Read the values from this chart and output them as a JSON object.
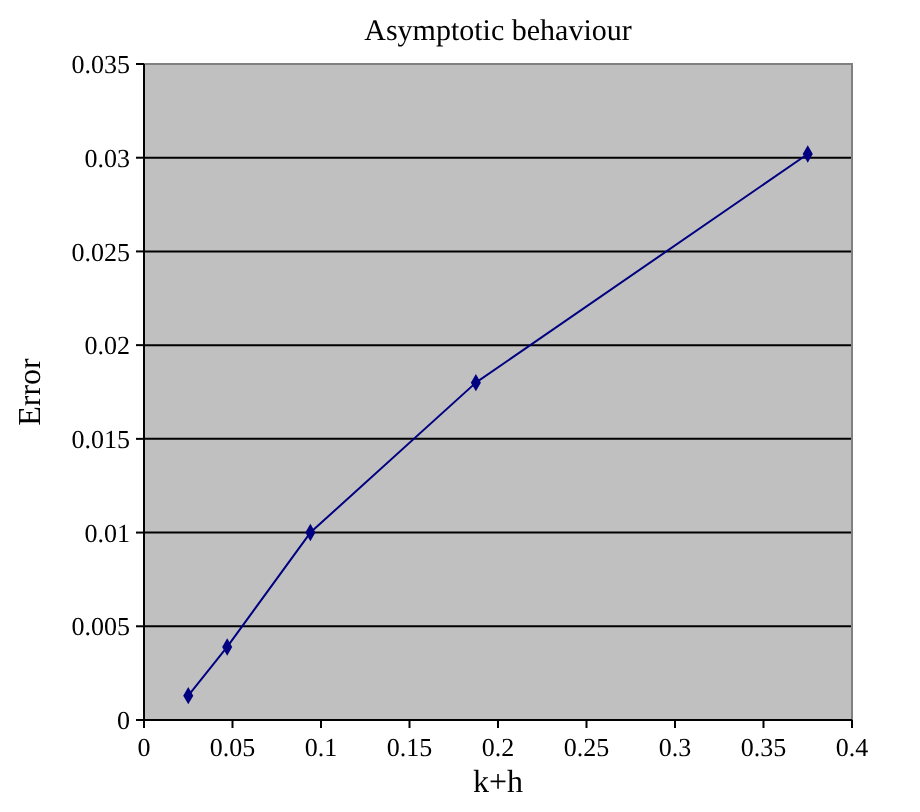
{
  "chart_data": {
    "type": "line",
    "title": "Asymptotic behaviour",
    "xlabel": "k+h",
    "ylabel": "Error",
    "x": [
      0.025,
      0.047,
      0.094,
      0.1875,
      0.375
    ],
    "series": [
      {
        "color": "#000080",
        "values": [
          0.0013,
          0.0039,
          0.01,
          0.018,
          0.0302
        ]
      }
    ],
    "xlim": [
      0,
      0.4
    ],
    "xticks": [
      0,
      0.05,
      0.1,
      0.15,
      0.2,
      0.25,
      0.3,
      0.35,
      0.4
    ],
    "ylim": [
      0,
      0.035
    ],
    "yticks": [
      0,
      0.005,
      0.01,
      0.015,
      0.02,
      0.025,
      0.03,
      0.035
    ],
    "grid": "y",
    "marker": "diamond",
    "line_style": "solid"
  }
}
